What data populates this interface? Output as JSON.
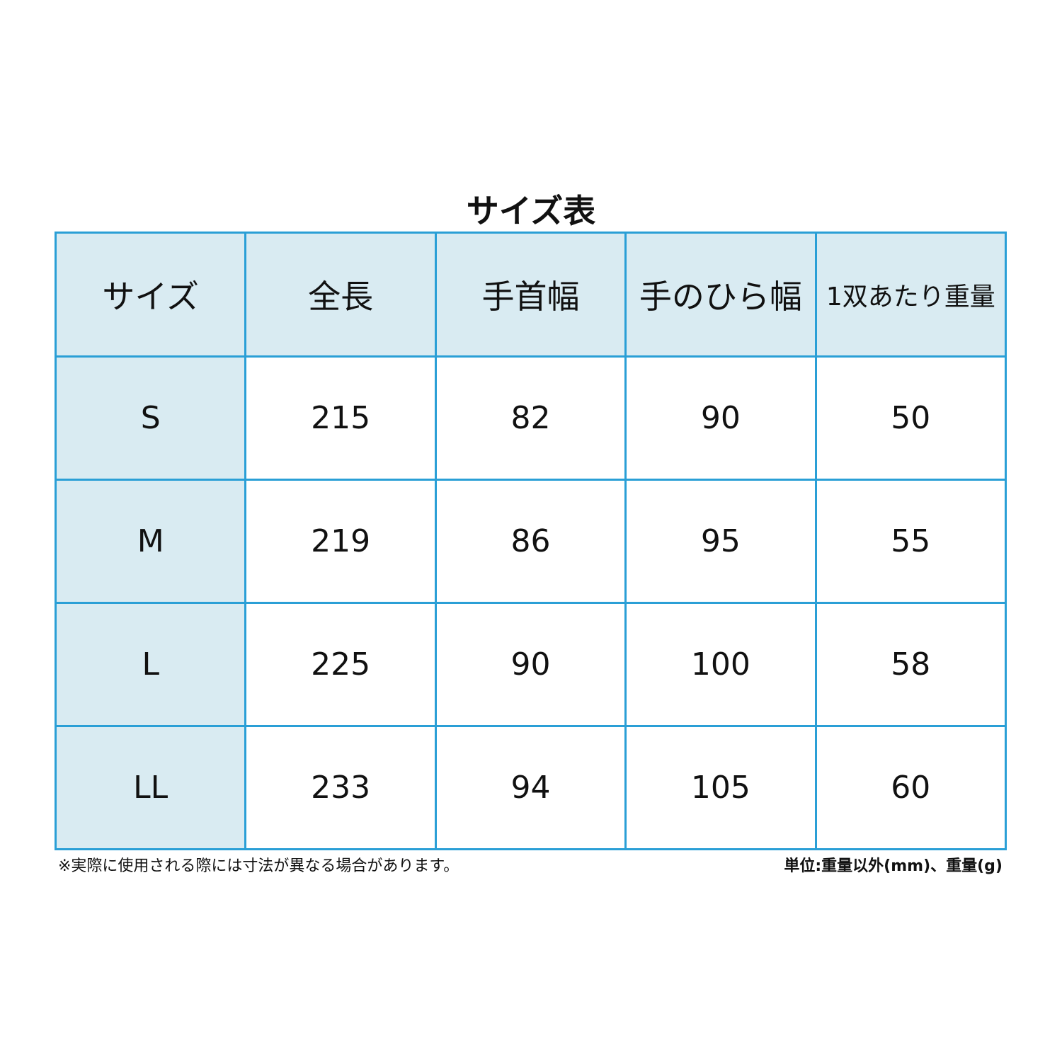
{
  "title": "サイズ表",
  "table": {
    "headers": [
      "サイズ",
      "全長",
      "手首幅",
      "手のひら幅",
      "1双あたり重量"
    ],
    "rows": [
      [
        "S",
        "215",
        "82",
        "90",
        "50"
      ],
      [
        "M",
        "219",
        "86",
        "95",
        "55"
      ],
      [
        "L",
        "225",
        "90",
        "100",
        "58"
      ],
      [
        "LL",
        "233",
        "94",
        "105",
        "60"
      ]
    ]
  },
  "footnote": "※実際に使用される際には寸法が異なる場合があります。",
  "unit_note": "単位:重量以外(mm)、重量(g)",
  "colors": {
    "border": "#2a9fd6",
    "header_fill": "#d9ebf2"
  }
}
